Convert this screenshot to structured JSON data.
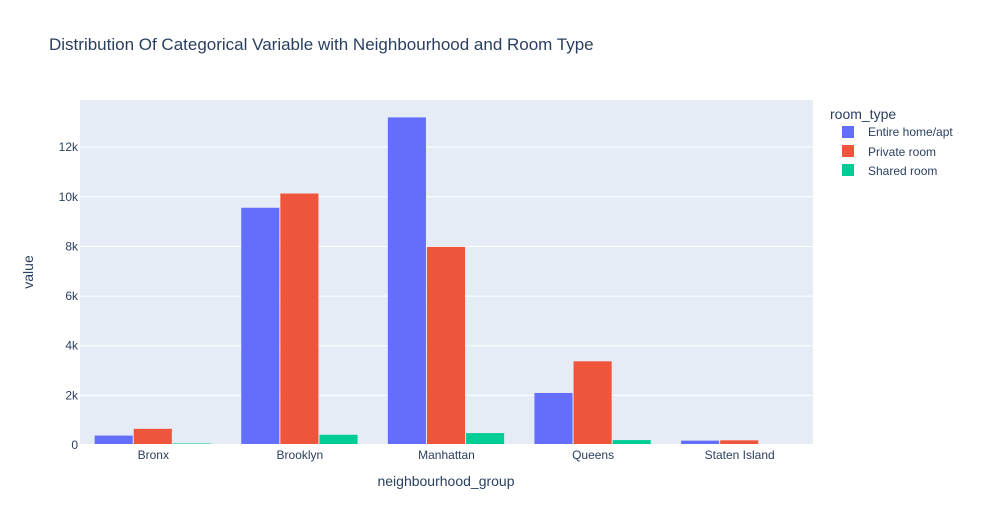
{
  "chart_data": {
    "type": "bar",
    "title": "Distribution Of Categorical Variable with Neighbourhood and Room Type",
    "xlabel": "neighbourhood_group",
    "ylabel": "value",
    "categories": [
      "Bronx",
      "Brooklyn",
      "Manhattan",
      "Queens",
      "Staten Island"
    ],
    "series": [
      {
        "name": "Entire home/apt",
        "color": "#636efa",
        "values": [
          379,
          9559,
          13199,
          2096,
          176
        ]
      },
      {
        "name": "Private room",
        "color": "#ef553b",
        "values": [
          652,
          10132,
          7982,
          3372,
          188
        ]
      },
      {
        "name": "Shared room",
        "color": "#00cc96",
        "values": [
          60,
          413,
          480,
          198,
          9
        ]
      }
    ],
    "ylim": [
      0,
      13900
    ],
    "yticks": [
      0,
      2000,
      4000,
      6000,
      8000,
      10000,
      12000
    ],
    "ytick_labels": [
      "0",
      "2k",
      "4k",
      "6k",
      "8k",
      "10k",
      "12k"
    ],
    "legend": {
      "title": "room_type",
      "position": "right"
    },
    "grid": true,
    "plot_background": "#e5ecf6",
    "gridline_color": "#ffffff"
  }
}
